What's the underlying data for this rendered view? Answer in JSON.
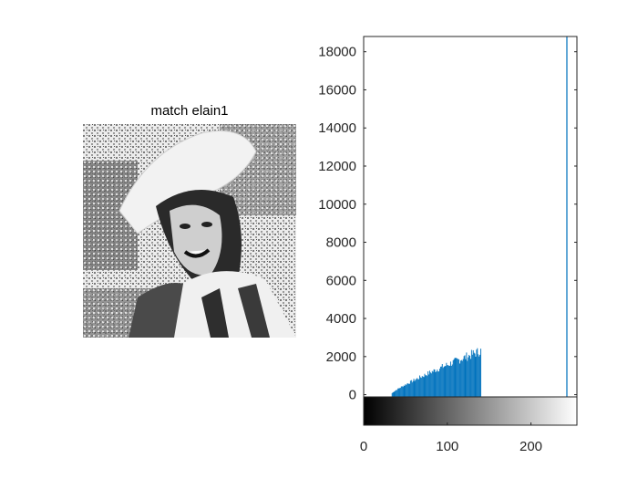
{
  "image_panel": {
    "title": "match elain1",
    "description_icon": "grayscale-portrait-image"
  },
  "colors": {
    "bar": "#0072BD",
    "axis": "#262626",
    "background": "#ffffff",
    "image_light": "#f2f2f2",
    "image_mid": "#8a8a8a",
    "image_dark": "#1e1e1e"
  },
  "chart_data": {
    "type": "bar",
    "title": "",
    "xlabel": "",
    "ylabel": "",
    "xlim": [
      0,
      255
    ],
    "ylim": [
      -1600,
      18800
    ],
    "grid": false,
    "y_ticks": [
      0,
      2000,
      4000,
      6000,
      8000,
      10000,
      12000,
      14000,
      16000,
      18000
    ],
    "x_ticks": [
      0,
      100,
      200
    ],
    "colorbar": {
      "range": [
        0,
        255
      ],
      "colormap": "gray"
    },
    "series": [
      {
        "name": "histogram",
        "ramp": {
          "start_bin": 34,
          "end_bin": 140,
          "start_value": 80,
          "end_value": 2300
        },
        "spikes": [
          {
            "bin": 243,
            "value": 18800
          }
        ]
      }
    ]
  }
}
